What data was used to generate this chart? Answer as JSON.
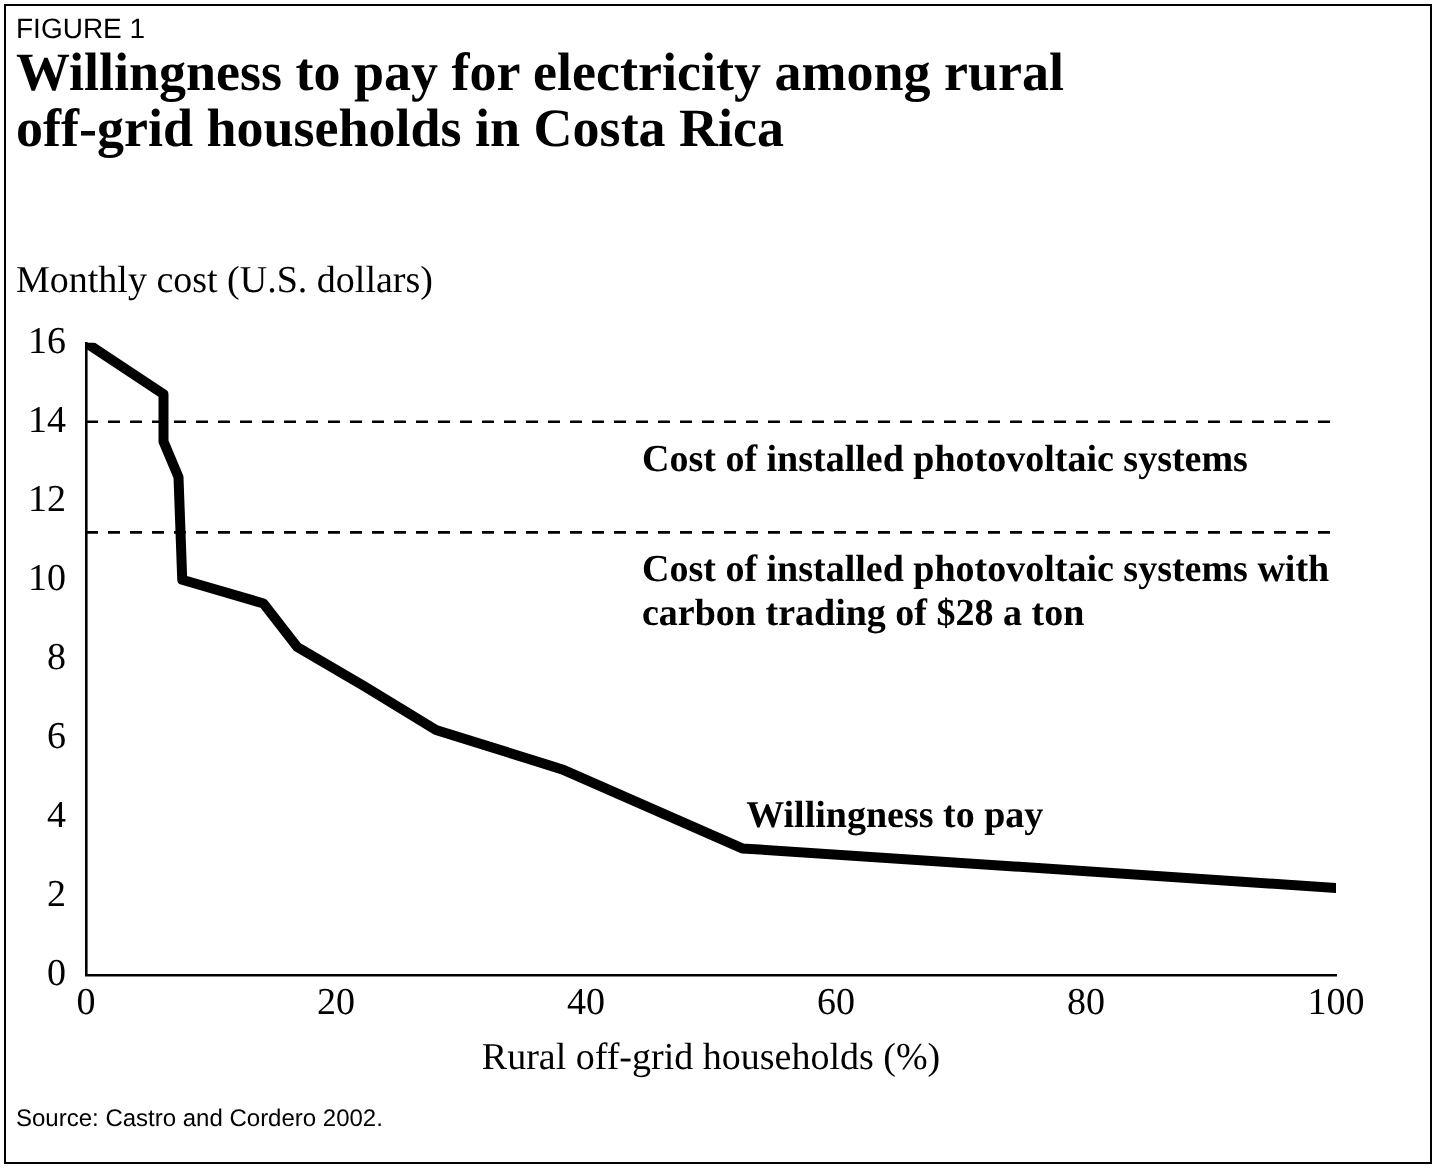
{
  "chart_data": {
    "type": "line",
    "subtitle": "FIGURE 1",
    "title": "Willingness to pay for electricity among rural off-grid households in Costa Rica",
    "ylabel": "Monthly cost (U.S. dollars)",
    "xlabel": "Rural off-grid households (%)",
    "series": [
      {
        "name": "Willingness to pay",
        "color": "#000000",
        "x": [
          0,
          6.2,
          6.2,
          7.4,
          7.7,
          14.2,
          16.9,
          22.3,
          28.0,
          38.1,
          52.5,
          100
        ],
        "values": [
          16,
          14.7,
          13.5,
          12.6,
          10,
          9.4,
          8.3,
          7.3,
          6.2,
          5.2,
          3.2,
          2.2
        ]
      }
    ],
    "xlim": [
      0,
      100
    ],
    "xticks": [
      0,
      20,
      40,
      60,
      80,
      100
    ],
    "ylim": [
      0,
      16
    ],
    "yticks": [
      0,
      2,
      4,
      6,
      8,
      10,
      12,
      14,
      16
    ],
    "ref_lines": [
      {
        "axis": "y",
        "value": 14,
        "label": "Cost of installed photovoltaic systems",
        "color": "#000000",
        "line_style": "dashed"
      },
      {
        "axis": "y",
        "value": 11.2,
        "label": "Cost of installed photovoltaic systems with carbon trading of $28 a ton",
        "color": "#000000",
        "line_style": "dashed"
      }
    ],
    "annotations": [
      "Source: Castro and Cordero 2002."
    ],
    "grid": false,
    "legend": false,
    "marker": "none",
    "line_style": "solid"
  }
}
